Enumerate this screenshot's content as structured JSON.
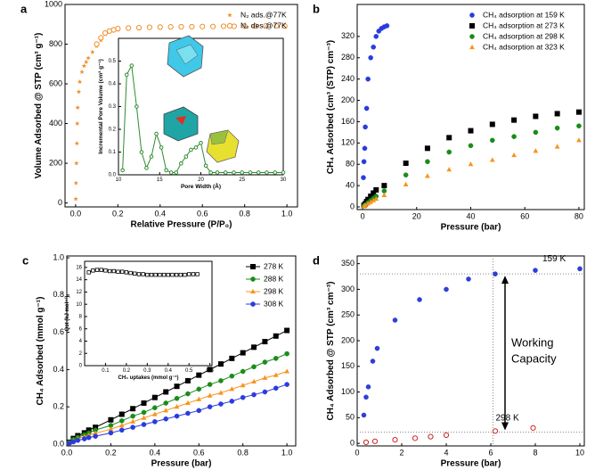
{
  "chart_data": [
    {
      "type": "scatter",
      "panel_label": "a",
      "xlabel": "Relative Pressure (P/P₀)",
      "ylabel": "Volume Adsorbed @ STP (cm³ g⁻¹)",
      "xlim": [
        -0.05,
        1.05
      ],
      "xticks": [
        {
          "value": 0,
          "label": "0.0"
        },
        0.2,
        0.4,
        0.6,
        0.8,
        {
          "value": 1,
          "label": "1.0"
        }
      ],
      "ylim": [
        -20,
        1000
      ],
      "yticks": [
        0,
        200,
        400,
        600,
        800,
        1000
      ],
      "legend": "top right",
      "series": [
        {
          "name": "N₂ ads.@77K",
          "color": "#f28c28",
          "marker": "star",
          "x": [
            0.001,
            0.002,
            0.004,
            0.006,
            0.008,
            0.01,
            0.015,
            0.02,
            0.03,
            0.04,
            0.05,
            0.06,
            0.08,
            0.1,
            0.12,
            0.14,
            0.16,
            0.18,
            0.2,
            0.25,
            0.3,
            0.35,
            0.4,
            0.45,
            0.5,
            0.55,
            0.6,
            0.65,
            0.7,
            0.75,
            0.8,
            0.85,
            0.9,
            0.95,
            0.99
          ],
          "values": [
            20,
            100,
            200,
            300,
            400,
            480,
            560,
            610,
            660,
            690,
            710,
            730,
            760,
            790,
            820,
            850,
            862,
            868,
            872,
            876,
            879,
            881,
            883,
            884,
            885,
            886,
            887,
            887,
            888,
            888,
            889,
            889,
            890,
            890,
            891
          ]
        },
        {
          "name": "N₂ des.@77K",
          "color": "#f28c28",
          "marker": "circle-open",
          "x": [
            0.99,
            0.95,
            0.9,
            0.85,
            0.8,
            0.75,
            0.7,
            0.65,
            0.6,
            0.55,
            0.5,
            0.45,
            0.4,
            0.35,
            0.3,
            0.25,
            0.2,
            0.18,
            0.16,
            0.14,
            0.12,
            0.1
          ],
          "values": [
            891,
            892,
            892,
            891,
            891,
            890,
            890,
            889,
            889,
            888,
            888,
            887,
            886,
            885,
            883,
            881,
            878,
            872,
            866,
            856,
            832,
            800
          ]
        }
      ],
      "inset": {
        "type": "line",
        "xlabel": "Pore Width (Å)",
        "ylabel": "Incremental Pore Volume (cm³ g⁻¹)",
        "xlim": [
          10,
          30
        ],
        "xticks": [
          10,
          15,
          20,
          25,
          30
        ],
        "ylim": [
          0,
          0.6
        ],
        "yticks": [
          {
            "value": 0,
            "label": "0.0"
          },
          0.1,
          0.2,
          0.3,
          0.4,
          0.5
        ],
        "series": [
          {
            "color": "#2e8b2e",
            "marker": "circle-open",
            "x": [
              10.5,
              11.0,
              11.6,
              12.2,
              12.8,
              13.4,
              14.0,
              14.6,
              15.2,
              15.8,
              16.4,
              17.0,
              17.6,
              18.2,
              18.8,
              19.4,
              20.0,
              20.6,
              21.2,
              22,
              23,
              24,
              25,
              26,
              27,
              28,
              29,
              30
            ],
            "values": [
              0.02,
              0.44,
              0.48,
              0.3,
              0.1,
              0.03,
              0.08,
              0.18,
              0.12,
              0.02,
              0.01,
              0.01,
              0.05,
              0.08,
              0.11,
              0.12,
              0.14,
              0.04,
              0.01,
              0.01,
              0.01,
              0.01,
              0.01,
              0.01,
              0.01,
              0.01,
              0.01,
              0.01
            ]
          }
        ]
      }
    },
    {
      "type": "scatter",
      "panel_label": "b",
      "xlabel": "Pressure (bar)",
      "ylabel": "CH₄ Adsorbed (cm³ (STP) cm⁻³)",
      "xlim": [
        -2,
        82
      ],
      "xticks": [
        0,
        20,
        40,
        60,
        80
      ],
      "ylim": [
        -5,
        380
      ],
      "yticks": [
        0,
        40,
        80,
        120,
        160,
        200,
        240,
        280,
        320
      ],
      "legend": "top right",
      "series": [
        {
          "name": "CH₄ adsorption at 159 K",
          "color": "#2a3be0",
          "marker": "circle",
          "x": [
            0.3,
            0.5,
            0.8,
            1,
            1.5,
            2,
            3,
            4,
            5,
            6,
            7,
            8,
            9
          ],
          "values": [
            55,
            85,
            110,
            150,
            185,
            240,
            280,
            300,
            320,
            330,
            335,
            338,
            340
          ]
        },
        {
          "name": "CH₄ adsorption at 273 K",
          "color": "#000000",
          "marker": "square",
          "x": [
            0.5,
            1,
            1.5,
            2,
            3,
            4,
            5,
            8,
            16,
            24,
            32,
            40,
            48,
            56,
            64,
            72,
            80
          ],
          "values": [
            3,
            6,
            10,
            14,
            20,
            26,
            32,
            40,
            82,
            110,
            130,
            143,
            155,
            163,
            170,
            175,
            178
          ]
        },
        {
          "name": "CH₄ adsorption at 298 K",
          "color": "#1a8c1a",
          "marker": "circle",
          "x": [
            0.5,
            1,
            2,
            3,
            4,
            5,
            8,
            16,
            24,
            32,
            40,
            48,
            56,
            64,
            72,
            80
          ],
          "values": [
            2,
            4,
            8,
            12,
            16,
            20,
            30,
            60,
            85,
            103,
            115,
            125,
            132,
            140,
            148,
            152
          ]
        },
        {
          "name": "CH₄ adsorption at 323 K",
          "color": "#f7941d",
          "marker": "triangle",
          "x": [
            0.5,
            1,
            2,
            3,
            4,
            5,
            8,
            16,
            24,
            32,
            40,
            48,
            56,
            64,
            72,
            80
          ],
          "values": [
            1,
            3,
            6,
            9,
            12,
            15,
            22,
            42,
            58,
            70,
            80,
            88,
            97,
            105,
            113,
            125
          ]
        }
      ]
    },
    {
      "type": "line",
      "panel_label": "c",
      "xlabel": "Pressure (bar)",
      "ylabel": "CH₄ Adsorbed (mmol g⁻¹)",
      "xlim": [
        0,
        1.04
      ],
      "xticks": [
        {
          "value": 0,
          "label": "0.0"
        },
        0.2,
        0.4,
        0.6,
        0.8,
        {
          "value": 1,
          "label": "1.0"
        }
      ],
      "ylim": [
        -0.01,
        1.01
      ],
      "yticks": [
        {
          "value": 0,
          "label": "0.0"
        },
        0.2,
        0.4,
        0.6,
        0.8,
        {
          "value": 1,
          "label": "1.0"
        }
      ],
      "legend": "top right",
      "x": [
        0.01,
        0.03,
        0.05,
        0.08,
        0.1,
        0.13,
        0.2,
        0.25,
        0.3,
        0.35,
        0.4,
        0.45,
        0.5,
        0.55,
        0.6,
        0.65,
        0.7,
        0.75,
        0.8,
        0.85,
        0.9,
        0.95,
        1.0
      ],
      "series": [
        {
          "name": "278 K",
          "color": "#000000",
          "marker": "square",
          "values": [
            0.01,
            0.03,
            0.045,
            0.06,
            0.075,
            0.09,
            0.13,
            0.16,
            0.19,
            0.22,
            0.25,
            0.28,
            0.31,
            0.34,
            0.37,
            0.4,
            0.43,
            0.46,
            0.49,
            0.52,
            0.55,
            0.58,
            0.61
          ]
        },
        {
          "name": "288 K",
          "color": "#1a8c1a",
          "marker": "circle",
          "values": [
            0.008,
            0.024,
            0.036,
            0.05,
            0.06,
            0.075,
            0.1,
            0.125,
            0.15,
            0.17,
            0.195,
            0.22,
            0.245,
            0.27,
            0.295,
            0.32,
            0.34,
            0.365,
            0.39,
            0.415,
            0.44,
            0.46,
            0.485
          ]
        },
        {
          "name": "298 K",
          "color": "#f7941d",
          "marker": "triangle",
          "values": [
            0.006,
            0.018,
            0.028,
            0.04,
            0.048,
            0.058,
            0.08,
            0.1,
            0.12,
            0.14,
            0.16,
            0.18,
            0.2,
            0.22,
            0.24,
            0.26,
            0.275,
            0.295,
            0.315,
            0.335,
            0.355,
            0.37,
            0.39
          ]
        },
        {
          "name": "308 K",
          "color": "#2a3be0",
          "marker": "circle",
          "values": [
            0.004,
            0.012,
            0.02,
            0.028,
            0.035,
            0.042,
            0.06,
            0.075,
            0.09,
            0.105,
            0.12,
            0.135,
            0.15,
            0.165,
            0.18,
            0.2,
            0.215,
            0.23,
            0.25,
            0.265,
            0.28,
            0.3,
            0.32
          ]
        }
      ],
      "inset": {
        "type": "line",
        "xlabel": "CH₄ uptakes (mmol g⁻¹)",
        "ylabel": "Qst (kJ mol⁻¹)",
        "xlim": [
          0,
          0.61
        ],
        "xticks": [
          0.1,
          0.2,
          0.3,
          0.4,
          0.5,
          0.6
        ],
        "ylim": [
          0,
          17
        ],
        "yticks": [
          0,
          2,
          4,
          6,
          8,
          10,
          12,
          14,
          16
        ],
        "series": [
          {
            "color": "#000000",
            "marker": "square-open",
            "x": [
              0.02,
              0.04,
              0.06,
              0.08,
              0.1,
              0.12,
              0.14,
              0.16,
              0.18,
              0.2,
              0.22,
              0.24,
              0.26,
              0.28,
              0.3,
              0.32,
              0.34,
              0.36,
              0.38,
              0.4,
              0.42,
              0.44,
              0.46,
              0.48,
              0.5,
              0.52,
              0.54
            ],
            "values": [
              15.2,
              15.5,
              15.6,
              15.6,
              15.5,
              15.4,
              15.4,
              15.3,
              15.3,
              15.2,
              15.1,
              15.0,
              14.9,
              14.9,
              14.8,
              14.8,
              14.8,
              14.8,
              14.8,
              14.8,
              14.8,
              14.8,
              14.8,
              14.8,
              14.9,
              14.9,
              14.9
            ]
          }
        ]
      }
    },
    {
      "type": "scatter",
      "panel_label": "d",
      "xlabel": "Pressure (bar)",
      "ylabel": "CH₄ Adsorbed @ STP (cm³ cm⁻³)",
      "xlim": [
        0,
        10.2
      ],
      "xticks": [
        0,
        2,
        4,
        6,
        8,
        10
      ],
      "ylim": [
        -5,
        365
      ],
      "yticks": [
        0,
        50,
        100,
        150,
        200,
        250,
        300,
        350
      ],
      "hlines": [
        330,
        22
      ],
      "vline": 6.1,
      "series": [
        {
          "name": "159 K",
          "color": "#2f3fd6",
          "marker": "circle",
          "x": [
            0.3,
            0.4,
            0.5,
            0.7,
            0.9,
            1.7,
            2.8,
            4,
            5,
            6.2,
            8,
            10
          ],
          "values": [
            55,
            90,
            110,
            160,
            185,
            240,
            280,
            300,
            320,
            330,
            337,
            340
          ]
        },
        {
          "name": "298 K",
          "color": "#cc2222",
          "marker": "circle-open",
          "x": [
            0.4,
            0.8,
            1.7,
            2.6,
            3.3,
            4,
            6.2,
            7.9
          ],
          "values": [
            2,
            4,
            7,
            10,
            13,
            16,
            24,
            30
          ]
        }
      ],
      "annotation": [
        "Working",
        "Capacity"
      ]
    }
  ]
}
